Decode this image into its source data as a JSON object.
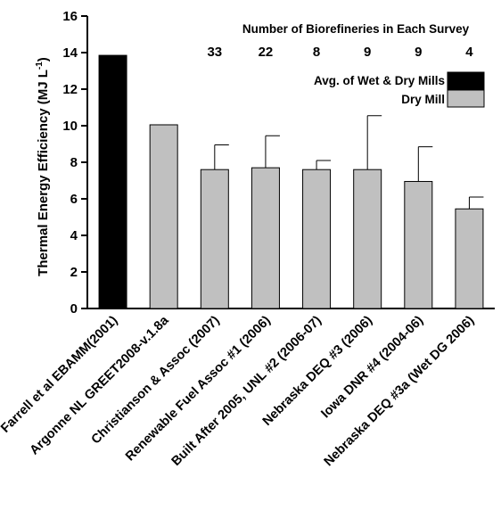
{
  "chart_data": {
    "type": "bar",
    "categories": [
      "Farrell et al EBAMM(2001)",
      "Argonne NL GREET2008-v.1.8a",
      "Christianson & Assoc (2007)",
      "Renewable Fuel Assoc #1 (2006)",
      "Built After 2005, UNL #2 (2006-07)",
      "Nebraska DEQ #3 (2006)",
      "Iowa DNR #4 (2004-06)",
      "Nebraska DEQ #3a (Wet DG 2006)"
    ],
    "values": [
      13.85,
      10.05,
      7.6,
      7.7,
      7.6,
      7.6,
      6.95,
      5.45
    ],
    "error_upper": [
      null,
      null,
      8.95,
      9.45,
      8.1,
      10.55,
      8.85,
      6.1
    ],
    "bar_group": [
      "wet_dry",
      "dry",
      "dry",
      "dry",
      "dry",
      "dry",
      "dry",
      "dry"
    ],
    "ylabel_main": "Thermal Energy Efficiency (MJ L",
    "ylabel_sup": "-1",
    "ylabel_close": ")",
    "ylim": [
      0,
      16
    ],
    "yticks": [
      "0",
      "2",
      "4",
      "6",
      "8",
      "10",
      "12",
      "14",
      "16"
    ],
    "annotation_title": "Number of Biorefineries in Each Survey",
    "survey_counts": [
      "33",
      "22",
      "8",
      "9",
      "9",
      "4"
    ],
    "legend": {
      "placement": "top-right",
      "items": [
        {
          "label": "Avg. of Wet & Dry Mills",
          "color": "#000000"
        },
        {
          "label": "Dry Mill",
          "color": "#c0c0c0"
        }
      ]
    },
    "colors": {
      "wet_dry": "#000000",
      "dry": "#c0c0c0",
      "edge": "#000000"
    }
  }
}
